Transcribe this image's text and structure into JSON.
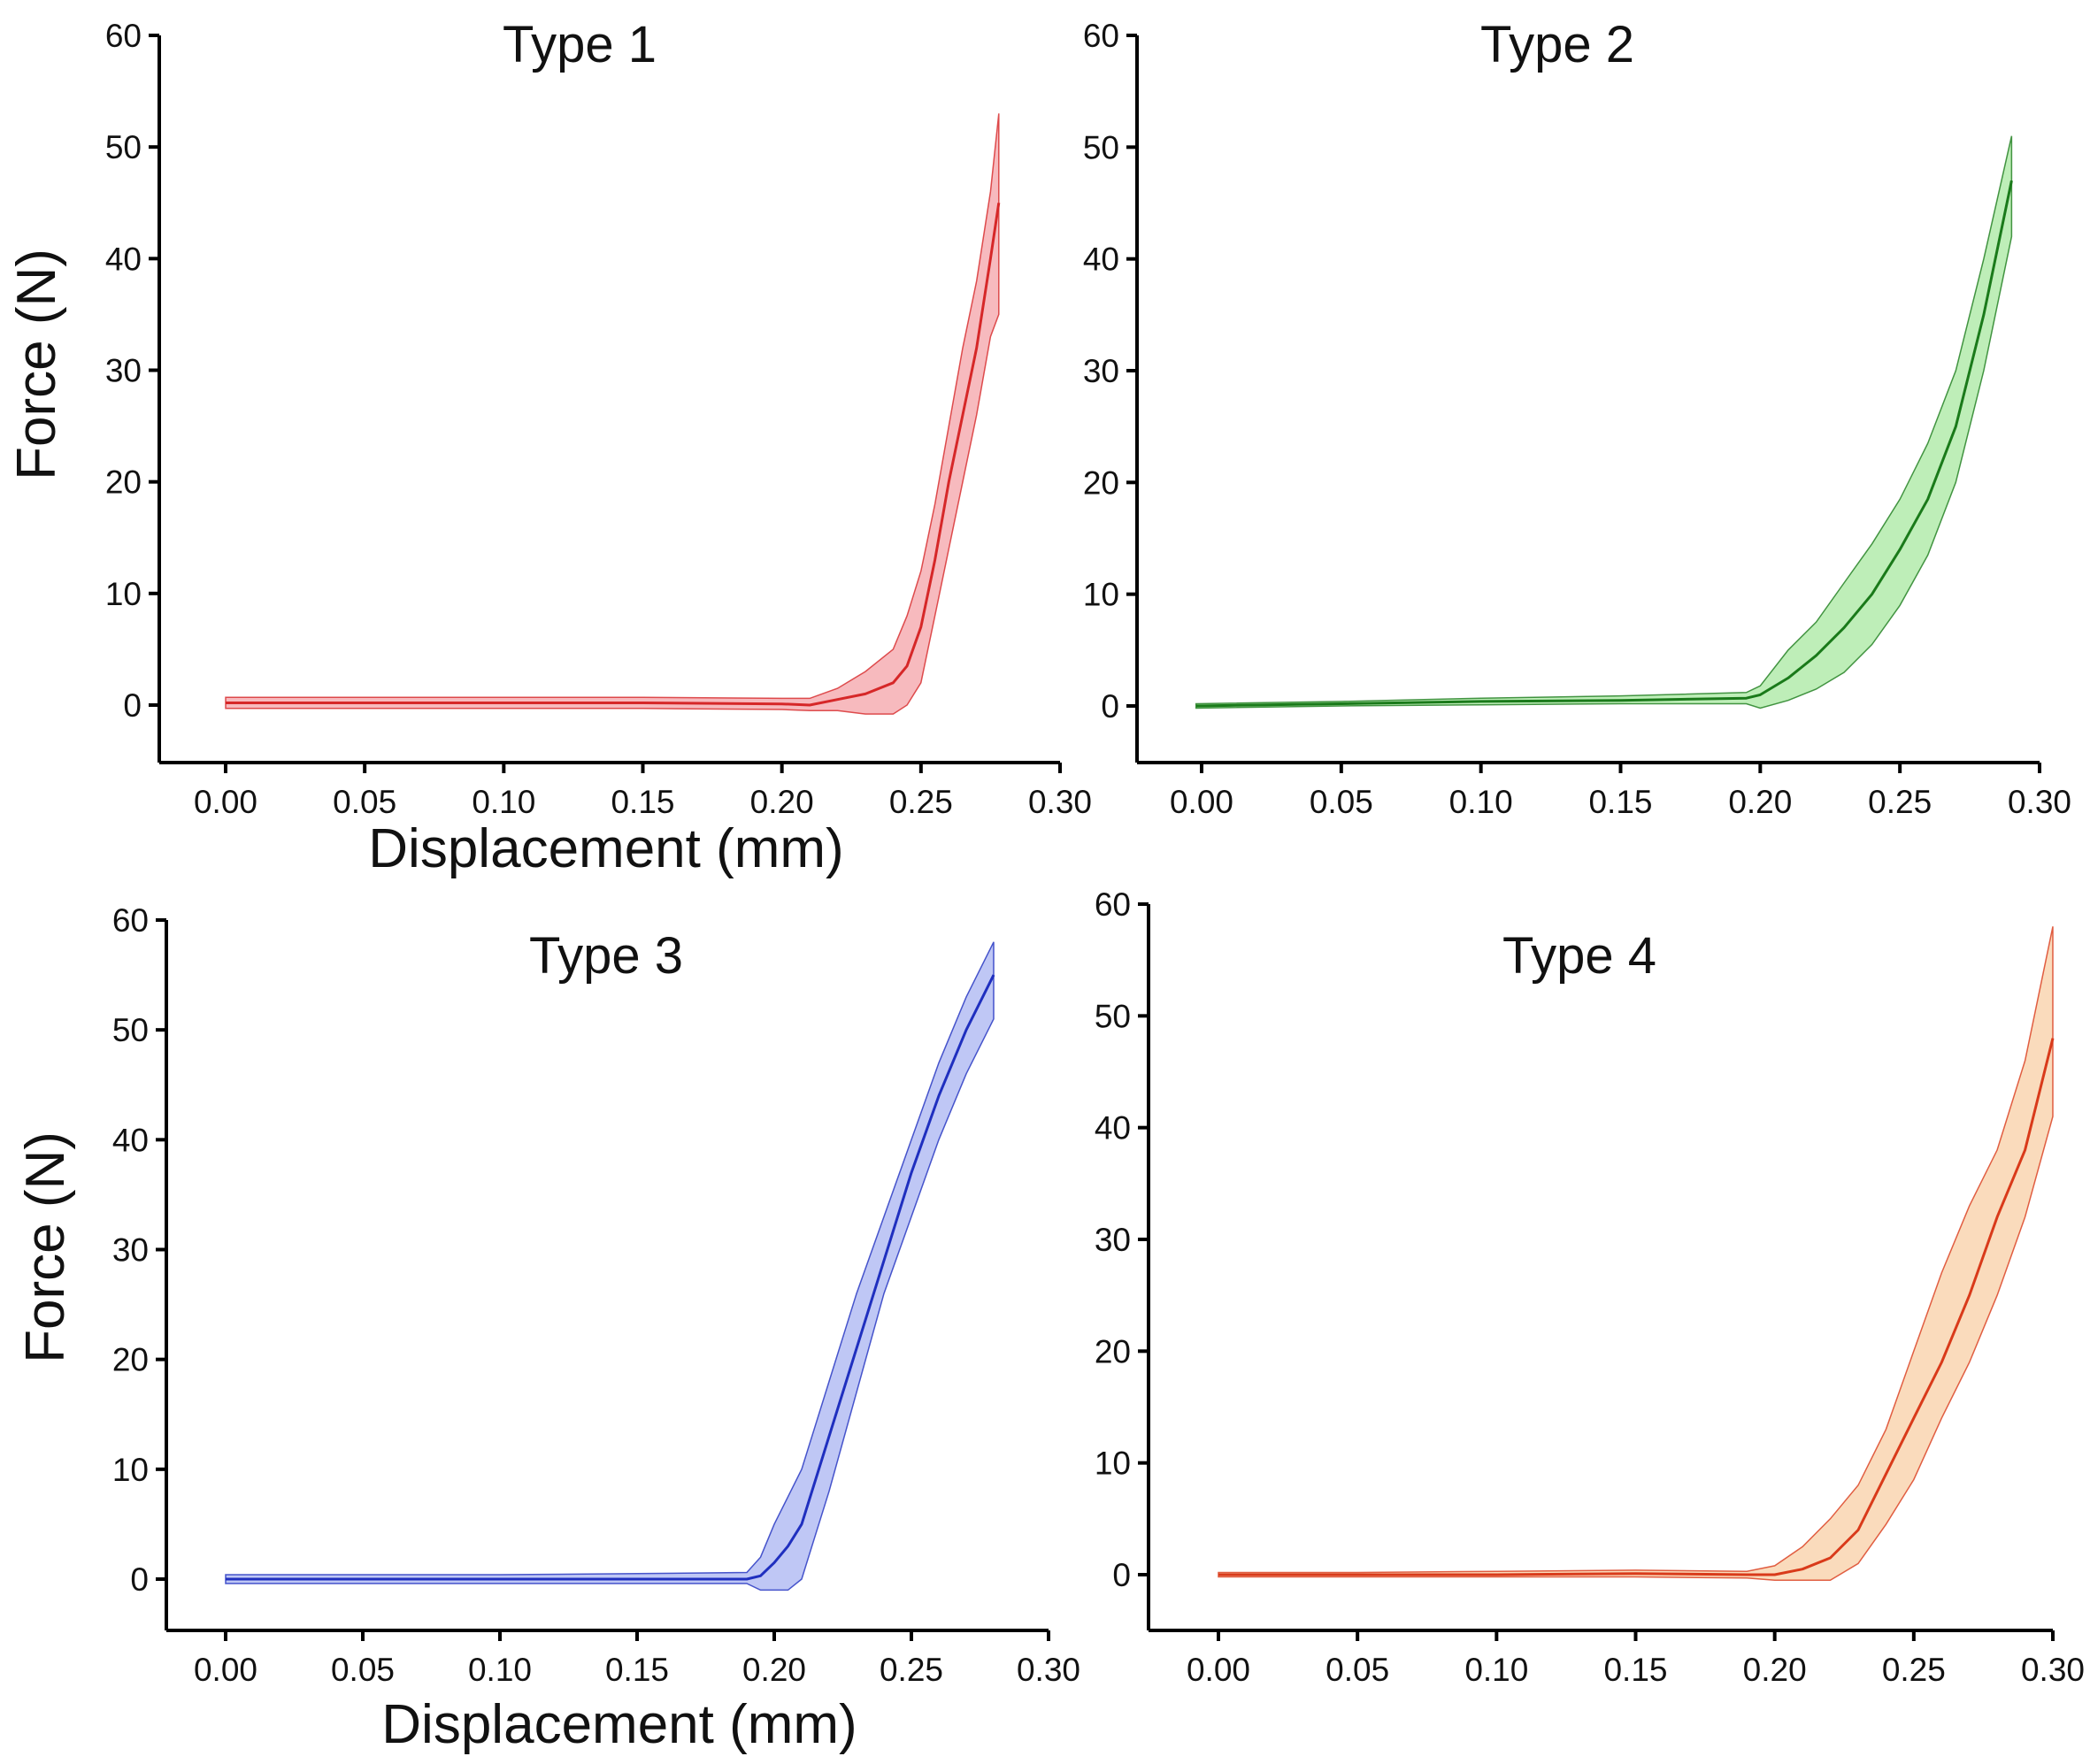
{
  "figure": {
    "ylabel": "Force (N)",
    "xlabel": "Displacement (mm)"
  },
  "chart_data": [
    {
      "type": "line",
      "title": "Type 1",
      "xlabel": "Displacement (mm)",
      "ylabel": "Force (N)",
      "xlim": [
        -0.025,
        0.3
      ],
      "ylim": [
        -5,
        60
      ],
      "xticks": [
        "0.00",
        "0.05",
        "0.10",
        "0.15",
        "0.20",
        "0.25",
        "0.30"
      ],
      "yticks": [
        "0",
        "10",
        "20",
        "30",
        "40",
        "50",
        "60"
      ],
      "grid": false,
      "color": "#d62728",
      "fill_color": "#f4a3a8",
      "series": [
        {
          "x": [
            0.0,
            0.05,
            0.1,
            0.15,
            0.2,
            0.21,
            0.22,
            0.23,
            0.24,
            0.245,
            0.25,
            0.255,
            0.26,
            0.265,
            0.27,
            0.275,
            0.278
          ],
          "y": [
            0.2,
            0.2,
            0.2,
            0.2,
            0.1,
            0.0,
            0.5,
            1.0,
            2.0,
            3.5,
            7.0,
            13.0,
            20.0,
            26.0,
            32.0,
            40.0,
            45.0
          ],
          "lower": [
            -0.3,
            -0.3,
            -0.3,
            -0.3,
            -0.4,
            -0.5,
            -0.5,
            -0.8,
            -0.8,
            0.0,
            2.0,
            8.0,
            14.0,
            20.0,
            26.0,
            33.0,
            35.0
          ],
          "upper": [
            0.7,
            0.7,
            0.7,
            0.7,
            0.6,
            0.6,
            1.5,
            3.0,
            5.0,
            8.0,
            12.0,
            18.0,
            25.0,
            32.0,
            38.0,
            46.0,
            53.0
          ]
        }
      ]
    },
    {
      "type": "line",
      "title": "Type 2",
      "xlabel": "",
      "ylabel": "",
      "xlim": [
        -0.025,
        0.3
      ],
      "ylim": [
        -5,
        60
      ],
      "xticks": [
        "0.00",
        "0.05",
        "0.10",
        "0.15",
        "0.20",
        "0.25",
        "0.30"
      ],
      "yticks": [
        "0",
        "10",
        "20",
        "30",
        "40",
        "50",
        "60"
      ],
      "grid": false,
      "color": "#1a7a1a",
      "fill_color": "#a8e8a0",
      "series": [
        {
          "x": [
            -0.002,
            0.05,
            0.1,
            0.15,
            0.195,
            0.2,
            0.21,
            0.22,
            0.23,
            0.24,
            0.25,
            0.26,
            0.27,
            0.28,
            0.29
          ],
          "y": [
            0.0,
            0.2,
            0.4,
            0.5,
            0.7,
            1.0,
            2.5,
            4.5,
            7.0,
            10.0,
            14.0,
            18.5,
            25.0,
            35.0,
            47.0
          ],
          "lower": [
            -0.2,
            0.0,
            0.1,
            0.2,
            0.2,
            -0.2,
            0.5,
            1.5,
            3.0,
            5.5,
            9.0,
            13.5,
            20.0,
            30.0,
            42.0
          ],
          "upper": [
            0.2,
            0.4,
            0.7,
            0.9,
            1.2,
            1.8,
            5.0,
            7.5,
            11.0,
            14.5,
            18.5,
            23.5,
            30.0,
            40.0,
            51.0
          ]
        }
      ]
    },
    {
      "type": "line",
      "title": "Type 3",
      "xlabel": "Displacement (mm)",
      "ylabel": "Force (N)",
      "xlim": [
        -0.025,
        0.3
      ],
      "ylim": [
        -5,
        60
      ],
      "xticks": [
        "0.00",
        "0.05",
        "0.10",
        "0.15",
        "0.20",
        "0.25",
        "0.30"
      ],
      "yticks": [
        "0",
        "10",
        "20",
        "30",
        "40",
        "50",
        "60"
      ],
      "grid": false,
      "color": "#1f2fbf",
      "fill_color": "#aab4f2",
      "series": [
        {
          "x": [
            0.0,
            0.05,
            0.1,
            0.15,
            0.19,
            0.195,
            0.2,
            0.205,
            0.21,
            0.215,
            0.22,
            0.23,
            0.24,
            0.25,
            0.26,
            0.27,
            0.28
          ],
          "y": [
            0.0,
            0.0,
            0.0,
            0.0,
            0.0,
            0.3,
            1.5,
            3.0,
            5.0,
            9.0,
            13.0,
            21.0,
            29.0,
            37.0,
            44.0,
            50.0,
            55.0
          ],
          "lower": [
            -0.4,
            -0.4,
            -0.4,
            -0.4,
            -0.4,
            -1.0,
            -1.0,
            -1.0,
            0.0,
            4.0,
            8.0,
            17.0,
            26.0,
            33.0,
            40.0,
            46.0,
            51.0
          ],
          "upper": [
            0.4,
            0.4,
            0.4,
            0.5,
            0.6,
            2.0,
            5.0,
            7.5,
            10.0,
            14.0,
            18.0,
            26.0,
            33.0,
            40.0,
            47.0,
            53.0,
            58.0
          ]
        }
      ]
    },
    {
      "type": "line",
      "title": "Type 4",
      "xlabel": "",
      "ylabel": "",
      "xlim": [
        -0.025,
        0.3
      ],
      "ylim": [
        -5,
        60
      ],
      "xticks": [
        "0.00",
        "0.05",
        "0.10",
        "0.15",
        "0.20",
        "0.25",
        "0.30"
      ],
      "yticks": [
        "0",
        "10",
        "20",
        "30",
        "40",
        "50",
        "60"
      ],
      "grid": false,
      "color": "#d93a1a",
      "fill_color": "#f8cfa5",
      "series": [
        {
          "x": [
            0.0,
            0.05,
            0.1,
            0.15,
            0.19,
            0.2,
            0.21,
            0.22,
            0.23,
            0.24,
            0.25,
            0.26,
            0.27,
            0.28,
            0.29,
            0.3
          ],
          "y": [
            0.0,
            0.0,
            0.0,
            0.1,
            0.0,
            0.0,
            0.5,
            1.5,
            4.0,
            9.0,
            14.0,
            19.0,
            25.0,
            32.0,
            38.0,
            48.0
          ],
          "lower": [
            -0.2,
            -0.2,
            -0.2,
            -0.2,
            -0.3,
            -0.5,
            -0.5,
            -0.5,
            1.0,
            4.5,
            8.5,
            14.0,
            19.0,
            25.0,
            32.0,
            41.0
          ],
          "upper": [
            0.2,
            0.2,
            0.3,
            0.4,
            0.3,
            0.8,
            2.5,
            5.0,
            8.0,
            13.0,
            20.0,
            27.0,
            33.0,
            38.0,
            46.0,
            58.0
          ]
        }
      ]
    }
  ]
}
